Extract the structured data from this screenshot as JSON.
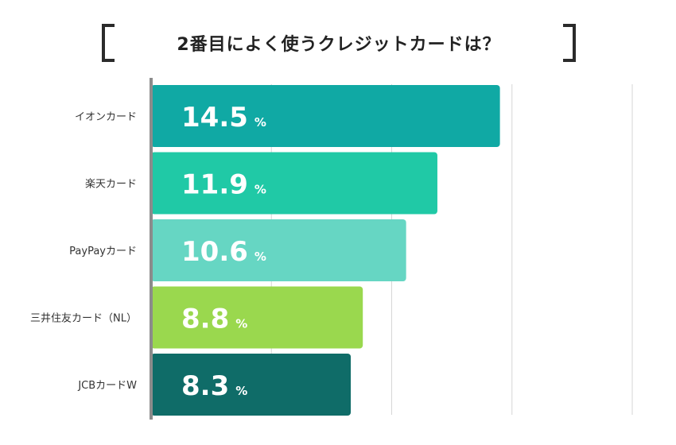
{
  "chart_data": {
    "type": "bar",
    "orientation": "horizontal",
    "title": "2番目によく使うクレジットカードは？",
    "categories": [
      "イオンカード",
      "楽天カード",
      "PayPayカード",
      "三井住友カード（NL）",
      "JCBカードW"
    ],
    "values": [
      14.5,
      11.9,
      10.6,
      8.8,
      8.3
    ],
    "value_labels": [
      "14.5",
      "11.9",
      "10.6",
      "8.8",
      "8.3"
    ],
    "unit": "%",
    "xlim": [
      0,
      20
    ],
    "grid": true,
    "legend": "none",
    "colors": [
      "#10a9a4",
      "#20c9a6",
      "#66d6c3",
      "#9ad84e",
      "#0f6c68"
    ]
  }
}
